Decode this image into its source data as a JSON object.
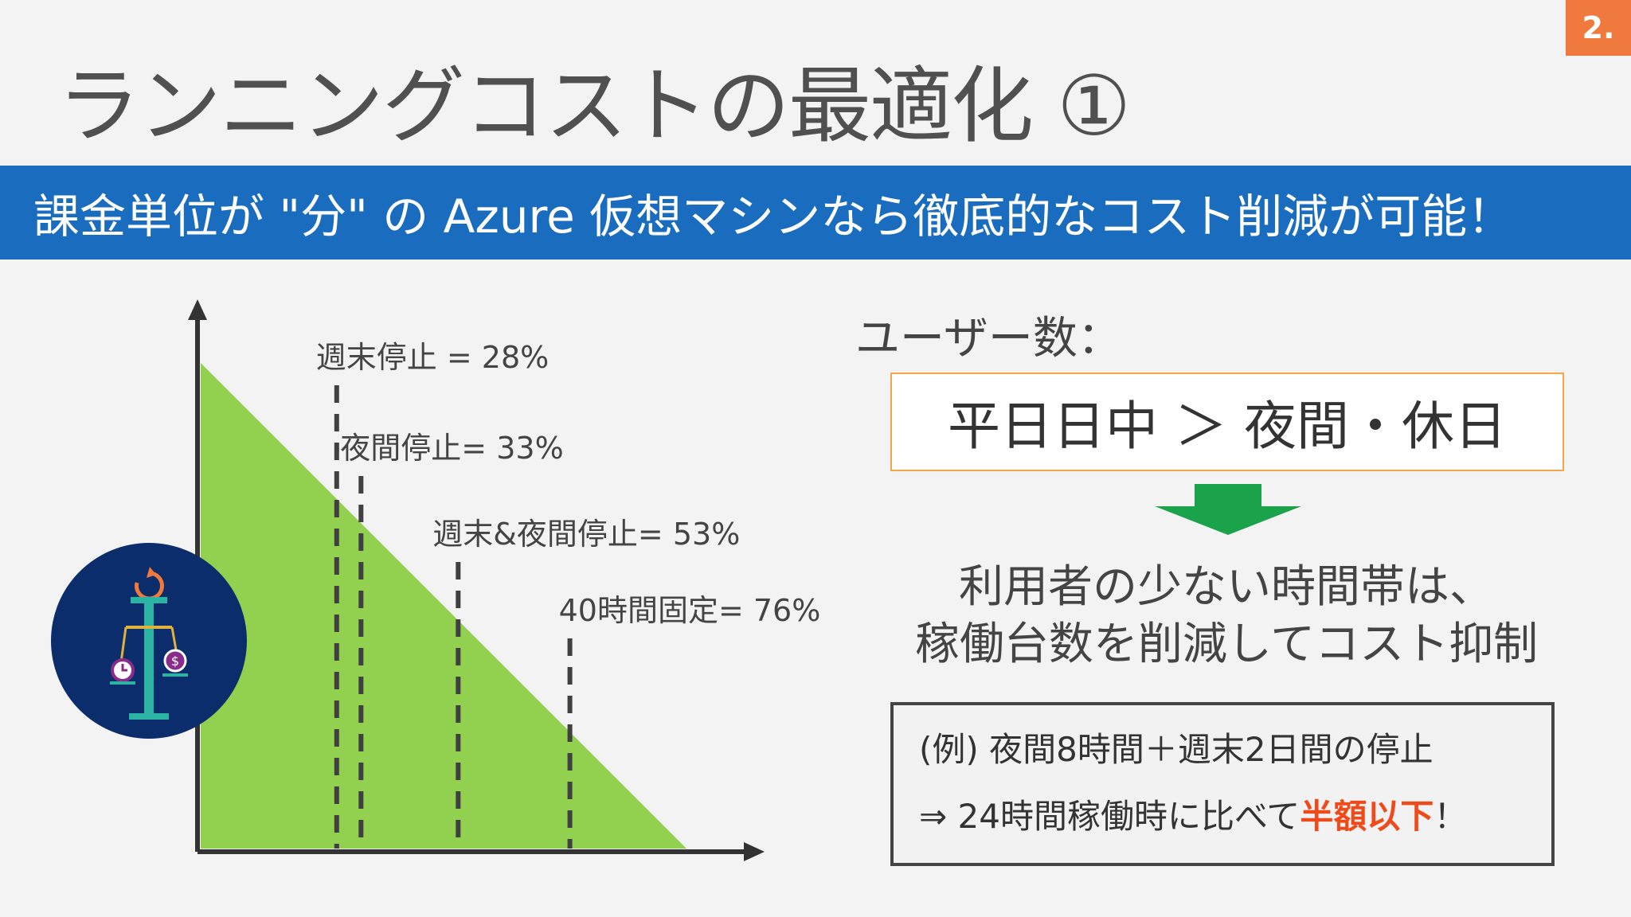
{
  "slide": {
    "page_number": "2.",
    "title": "ランニングコストの最適化 ①",
    "banner": "課金単位が \"分\" の Azure 仮想マシンなら徹底的なコスト削減が可能！"
  },
  "chart_data": {
    "type": "area",
    "annotations": [
      {
        "label": "週末停止 = 28%",
        "x": 28
      },
      {
        "label": "夜間停止= 33%",
        "x": 33
      },
      {
        "label": "週末&夜間停止= 53%",
        "x": 53
      },
      {
        "label": "40時間固定= 76%",
        "x": 76
      }
    ],
    "series": [
      {
        "x": [
          0,
          100
        ],
        "y": [
          100,
          0
        ]
      }
    ],
    "xlim": [
      0,
      100
    ],
    "ylim": [
      0,
      100
    ],
    "fill_color": "#92d050",
    "dashed_line_color": "#404040"
  },
  "icon": {
    "name": "cost-balance-icon",
    "bg_color": "#0b2d6b"
  },
  "users": {
    "label": "ユーザー数：",
    "comparison": "平日日中 ＞ 夜間・休日"
  },
  "conclusion": {
    "line1": "利用者の少ない時間帯は、",
    "line2": "稼働台数を削減してコスト抑制"
  },
  "example": {
    "line1": "(例) 夜間8時間＋週末2日間の停止",
    "line2_prefix": "⇒ 24時間稼働時に比べて",
    "line2_highlight": "半額以下",
    "line2_suffix": "！"
  },
  "colors": {
    "accent_blue": "#1a6dbe",
    "accent_orange": "#f07a3e",
    "highlight_red": "#f04a1a",
    "arrow_green": "#1aa34a"
  }
}
